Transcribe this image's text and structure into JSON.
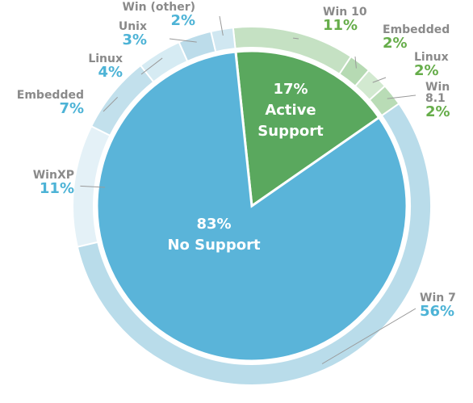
{
  "chart_data": {
    "type": "pie",
    "inner": {
      "slices": [
        {
          "name": "Active Support",
          "value": 17,
          "label": "17%",
          "color": "#5aa85e"
        },
        {
          "name": "No Support",
          "value": 83,
          "label": "83%",
          "color": "#5ab4d9"
        }
      ]
    },
    "outer": {
      "slices": [
        {
          "name": "Win 10",
          "value": 11,
          "label": "11%",
          "group": "active",
          "color": "#c5e1c3"
        },
        {
          "name": "Embedded",
          "value": 2,
          "label": "2%",
          "group": "active",
          "color": "#b6dab3"
        },
        {
          "name": "Linux",
          "value": 2,
          "label": "2%",
          "group": "active",
          "color": "#d2e9d0"
        },
        {
          "name": "Win 8.1",
          "value": 2,
          "label": "2%",
          "group": "active",
          "color": "#b9dcb6"
        },
        {
          "name": "Win 7",
          "value": 56,
          "label": "56%",
          "group": "none",
          "color": "#b9dcea"
        },
        {
          "name": "WinXP",
          "value": 11,
          "label": "11%",
          "group": "none",
          "color": "#e4f1f7"
        },
        {
          "name": "Embedded",
          "value": 7,
          "label": "7%",
          "group": "none",
          "color": "#c2e0ec"
        },
        {
          "name": "Linux",
          "value": 4,
          "label": "4%",
          "group": "none",
          "color": "#d6ebf3"
        },
        {
          "name": "Unix",
          "value": 3,
          "label": "3%",
          "group": "none",
          "color": "#bcdcea"
        },
        {
          "name": "Win (other)",
          "value": 2,
          "label": "2%",
          "group": "none",
          "color": "#d0e7f1"
        }
      ]
    },
    "colors": {
      "active_text": "#66ad4a",
      "none_text": "#4db3d6",
      "name_text": "#8a8a8a"
    }
  },
  "labels": {
    "center_active_pct": "17%",
    "center_active_line1": "Active",
    "center_active_line2": "Support",
    "center_none_pct": "83%",
    "center_none_text": "No Support"
  }
}
